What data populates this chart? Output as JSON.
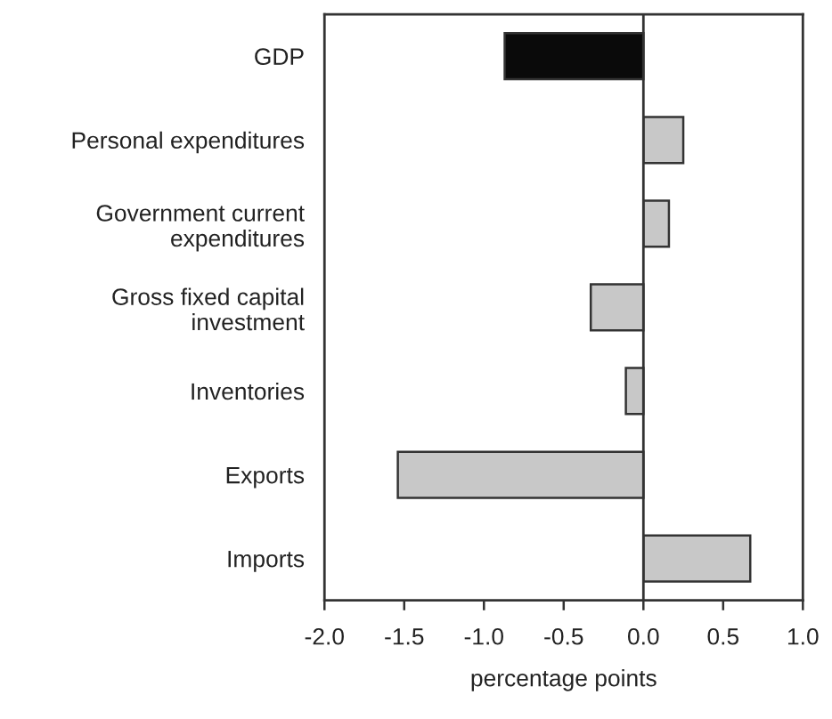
{
  "chart_data": {
    "type": "bar",
    "orientation": "horizontal",
    "categories": [
      "GDP",
      "Personal expenditures",
      "Government current\nexpenditures",
      "Gross fixed capital\ninvestment",
      "Inventories",
      "Exports",
      "Imports"
    ],
    "values": [
      -0.87,
      0.25,
      0.16,
      -0.33,
      -0.11,
      -1.54,
      0.67
    ],
    "colors": [
      "#0a0a0a",
      "#c8c8c8",
      "#c8c8c8",
      "#c8c8c8",
      "#c8c8c8",
      "#c8c8c8",
      "#c8c8c8"
    ],
    "xlabel": "percentage points",
    "xlim": [
      -2.0,
      1.0
    ],
    "xticks": [
      {
        "value": -2,
        "label": "-2.0"
      },
      {
        "value": -1.5,
        "label": "-1.5"
      },
      {
        "value": -1,
        "label": "-1.0"
      },
      {
        "value": -0.5,
        "label": "-0.5"
      },
      {
        "value": 0,
        "label": "0.0"
      },
      {
        "value": 0.5,
        "label": "0.5"
      },
      {
        "value": 1,
        "label": "1.0"
      }
    ],
    "ref_lines": [
      {
        "axis": "x",
        "value": 0,
        "color": "#333333"
      }
    ],
    "grid": false,
    "legend": false
  }
}
